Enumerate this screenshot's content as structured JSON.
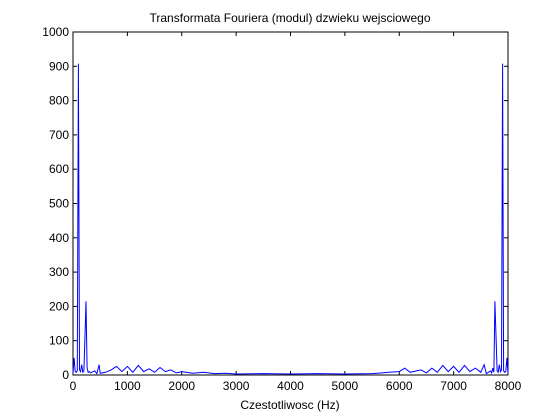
{
  "chart_data": {
    "type": "line",
    "title": "Transformata Fouriera (modul) dzwieku wejsciowego",
    "xlabel": "Czestotliwosc (Hz)",
    "ylabel": "",
    "xlim": [
      0,
      8000
    ],
    "ylim": [
      0,
      1000
    ],
    "xticks": [
      0,
      1000,
      2000,
      3000,
      4000,
      5000,
      6000,
      7000,
      8000
    ],
    "xtick_labels": [
      "0",
      "1000",
      "2000",
      "3000",
      "4000",
      "5000",
      "6000",
      "7000",
      "8000"
    ],
    "yticks": [
      0,
      100,
      200,
      300,
      400,
      500,
      600,
      700,
      800,
      900,
      1000
    ],
    "ytick_labels": [
      "0",
      "100",
      "200",
      "300",
      "400",
      "500",
      "600",
      "700",
      "800",
      "900",
      "1000"
    ],
    "grid": false,
    "legend": "none",
    "series_color": "#0000ff",
    "series": [
      {
        "x": [
          0,
          20,
          40,
          60,
          80,
          100,
          120,
          140,
          160,
          180,
          200,
          220,
          240,
          260,
          280,
          300,
          320,
          400,
          440,
          480,
          500,
          600,
          700,
          800,
          900,
          1000,
          1100,
          1200,
          1300,
          1400,
          1500,
          1600,
          1700,
          1800,
          1900,
          2000,
          2200,
          2400,
          2600,
          2800,
          3000,
          3500,
          4000,
          4500,
          5000,
          5500,
          5600,
          5800,
          6000,
          6100,
          6200,
          6400,
          6500,
          6600,
          6700,
          6800,
          6900,
          7000,
          7100,
          7200,
          7300,
          7400,
          7500,
          7560,
          7600,
          7680,
          7700,
          7720,
          7740,
          7760,
          7780,
          7800,
          7820,
          7840,
          7860,
          7880,
          7900,
          7920,
          7940,
          7960,
          7980,
          8000
        ],
        "values": [
          5,
          50,
          10,
          8,
          12,
          908,
          15,
          10,
          30,
          8,
          12,
          115,
          215,
          20,
          8,
          10,
          6,
          12,
          4,
          30,
          5,
          8,
          15,
          25,
          10,
          25,
          8,
          28,
          10,
          18,
          8,
          22,
          10,
          15,
          6,
          10,
          5,
          8,
          4,
          5,
          3,
          4,
          3,
          4,
          3,
          4,
          5,
          8,
          10,
          20,
          8,
          15,
          6,
          20,
          8,
          28,
          10,
          25,
          8,
          28,
          10,
          20,
          8,
          30,
          4,
          12,
          6,
          20,
          8,
          215,
          115,
          12,
          8,
          30,
          10,
          15,
          908,
          12,
          8,
          10,
          50,
          5
        ]
      }
    ]
  }
}
